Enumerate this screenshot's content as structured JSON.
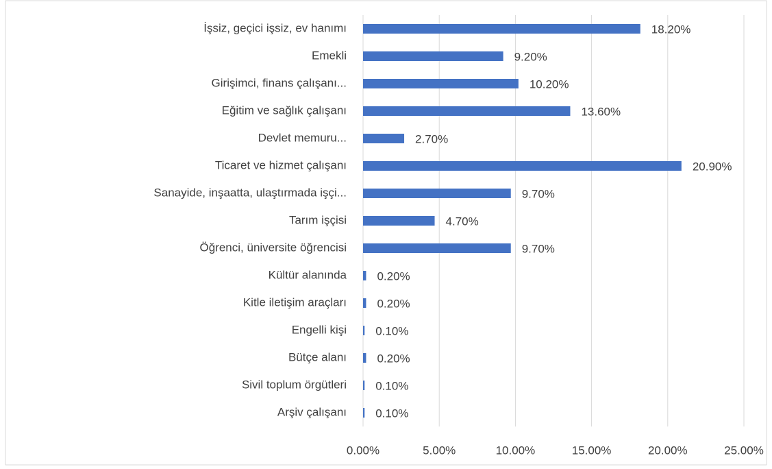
{
  "chart_data": {
    "type": "bar",
    "orientation": "horizontal",
    "color": "#4472c4",
    "grid": true,
    "categories": [
      "İşsiz, geçici işsiz, ev hanımı",
      "Emekli",
      "Girişimci, finans çalışanı...",
      "Eğitim ve sağlık çalışanı",
      "Devlet memuru...",
      "Ticaret ve hizmet çalışanı",
      "Sanayide, inşaatta, ulaştırmada işçi...",
      "Tarım işçisi",
      "Öğrenci, üniversite öğrencisi",
      "Kültür alanında",
      "Kitle iletişim araçları",
      "Engelli kişi",
      "Bütçe alanı",
      "Sivil toplum örgütleri",
      "Arşiv çalışanı"
    ],
    "values": [
      18.2,
      9.2,
      10.2,
      13.6,
      2.7,
      20.9,
      9.7,
      4.7,
      9.7,
      0.2,
      0.2,
      0.1,
      0.2,
      0.1,
      0.1
    ],
    "value_labels": [
      "18.20%",
      "9.20%",
      "10.20%",
      "13.60%",
      "2.70%",
      "20.90%",
      "9.70%",
      "4.70%",
      "9.70%",
      "0.20%",
      "0.20%",
      "0.10%",
      "0.20%",
      "0.10%",
      "0.10%"
    ],
    "xlim": [
      0,
      25
    ],
    "xticks": [
      {
        "value": 0,
        "label": "0.00%"
      },
      {
        "value": 5,
        "label": "5.00%"
      },
      {
        "value": 10,
        "label": "10.00%"
      },
      {
        "value": 15,
        "label": "15.00%"
      },
      {
        "value": 20,
        "label": "20.00%"
      },
      {
        "value": 25,
        "label": "25.00%"
      }
    ]
  }
}
